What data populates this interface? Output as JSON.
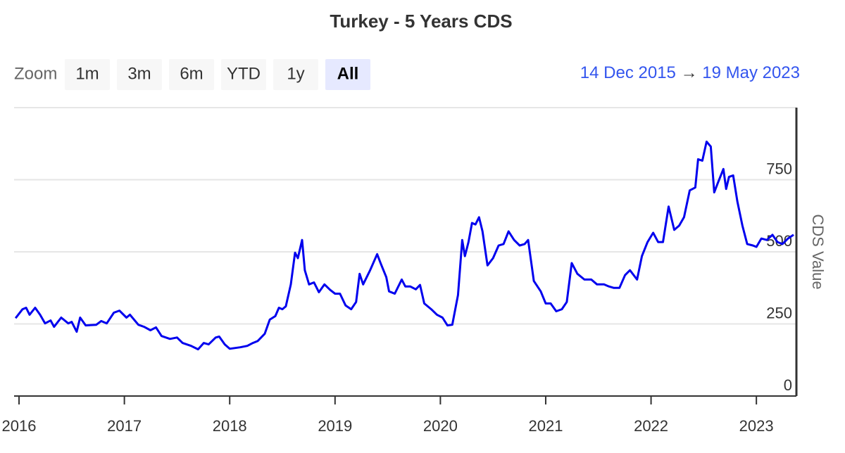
{
  "chart_data": {
    "type": "line",
    "title": "Turkey - 5 Years CDS",
    "zoom_label": "Zoom",
    "zoom_buttons": [
      "1m",
      "3m",
      "6m",
      "YTD",
      "1y",
      "All"
    ],
    "selected_button": 5,
    "range_from": "14 Dec 2015",
    "range_separator": "→",
    "range_to": "19 May 2023",
    "y_axis_label": "CDS Value",
    "grid": true,
    "xlim": [
      2015.953,
      2023.38
    ],
    "xticks": [
      2016,
      2017,
      2018,
      2019,
      2020,
      2021,
      2022,
      2023
    ],
    "ylim": [
      0,
      1000
    ],
    "yticks": [
      0,
      250,
      500,
      750
    ],
    "x": [
      2015.967,
      2016.033,
      2016.067,
      2016.1,
      2016.153,
      2016.2,
      2016.247,
      2016.3,
      2016.333,
      2016.4,
      2016.467,
      2016.5,
      2016.547,
      2016.58,
      2016.633,
      2016.733,
      2016.78,
      2016.833,
      2016.9,
      2016.953,
      2017.02,
      2017.053,
      2017.133,
      2017.187,
      2017.247,
      2017.3,
      2017.353,
      2017.433,
      2017.5,
      2017.553,
      2017.633,
      2017.7,
      2017.753,
      2017.8,
      2017.867,
      2017.9,
      2017.953,
      2018.0,
      2018.1,
      2018.167,
      2018.22,
      2018.267,
      2018.333,
      2018.38,
      2018.433,
      2018.467,
      2018.5,
      2018.533,
      2018.58,
      2018.62,
      2018.647,
      2018.687,
      2018.713,
      2018.753,
      2018.8,
      2018.847,
      2018.9,
      2018.953,
      2019.0,
      2019.047,
      2019.1,
      2019.153,
      2019.2,
      2019.233,
      2019.267,
      2019.333,
      2019.4,
      2019.433,
      2019.487,
      2019.513,
      2019.567,
      2019.633,
      2019.667,
      2019.713,
      2019.767,
      2019.807,
      2019.847,
      2019.913,
      2019.967,
      2020.02,
      2020.067,
      2020.113,
      2020.167,
      2020.207,
      2020.233,
      2020.267,
      2020.3,
      2020.333,
      2020.367,
      2020.4,
      2020.447,
      2020.5,
      2020.553,
      2020.6,
      2020.647,
      2020.7,
      2020.753,
      2020.8,
      2020.833,
      2020.887,
      2020.953,
      2021.0,
      2021.047,
      2021.1,
      2021.153,
      2021.2,
      2021.247,
      2021.3,
      2021.367,
      2021.433,
      2021.487,
      2021.553,
      2021.6,
      2021.647,
      2021.7,
      2021.753,
      2021.8,
      2021.867,
      2021.913,
      2021.967,
      2022.02,
      2022.067,
      2022.113,
      2022.167,
      2022.22,
      2022.267,
      2022.313,
      2022.367,
      2022.42,
      2022.447,
      2022.487,
      2022.527,
      2022.567,
      2022.6,
      2022.633,
      2022.687,
      2022.713,
      2022.74,
      2022.78,
      2022.82,
      2022.867,
      2022.913,
      2022.967,
      2023.0,
      2023.047,
      2023.1,
      2023.153,
      2023.2,
      2023.247,
      2023.3,
      2023.353
    ],
    "series": [
      {
        "name": "CDS Value",
        "color": "#0000ee",
        "values": [
          270,
          301,
          306,
          282,
          306,
          282,
          252,
          262,
          240,
          272,
          252,
          257,
          223,
          272,
          245,
          247,
          260,
          252,
          289,
          296,
          272,
          282,
          247,
          240,
          228,
          238,
          208,
          198,
          203,
          184,
          174,
          162,
          184,
          179,
          203,
          206,
          179,
          164,
          169,
          174,
          184,
          191,
          216,
          265,
          277,
          306,
          301,
          311,
          387,
          497,
          478,
          541,
          436,
          387,
          394,
          360,
          387,
          368,
          355,
          355,
          314,
          301,
          326,
          424,
          387,
          436,
          492,
          460,
          412,
          363,
          355,
          404,
          380,
          380,
          370,
          385,
          321,
          301,
          282,
          272,
          245,
          247,
          350,
          541,
          485,
          534,
          600,
          595,
          620,
          571,
          453,
          478,
          522,
          527,
          571,
          541,
          522,
          527,
          541,
          399,
          363,
          321,
          321,
          294,
          301,
          326,
          461,
          424,
          404,
          404,
          387,
          387,
          380,
          375,
          375,
          419,
          436,
          404,
          485,
          534,
          566,
          534,
          534,
          657,
          576,
          591,
          620,
          713,
          723,
          821,
          816,
          882,
          865,
          706,
          738,
          787,
          718,
          760,
          765,
          674,
          591,
          527,
          522,
          517,
          546,
          541,
          559,
          534,
          527,
          546,
          559
        ]
      }
    ]
  }
}
